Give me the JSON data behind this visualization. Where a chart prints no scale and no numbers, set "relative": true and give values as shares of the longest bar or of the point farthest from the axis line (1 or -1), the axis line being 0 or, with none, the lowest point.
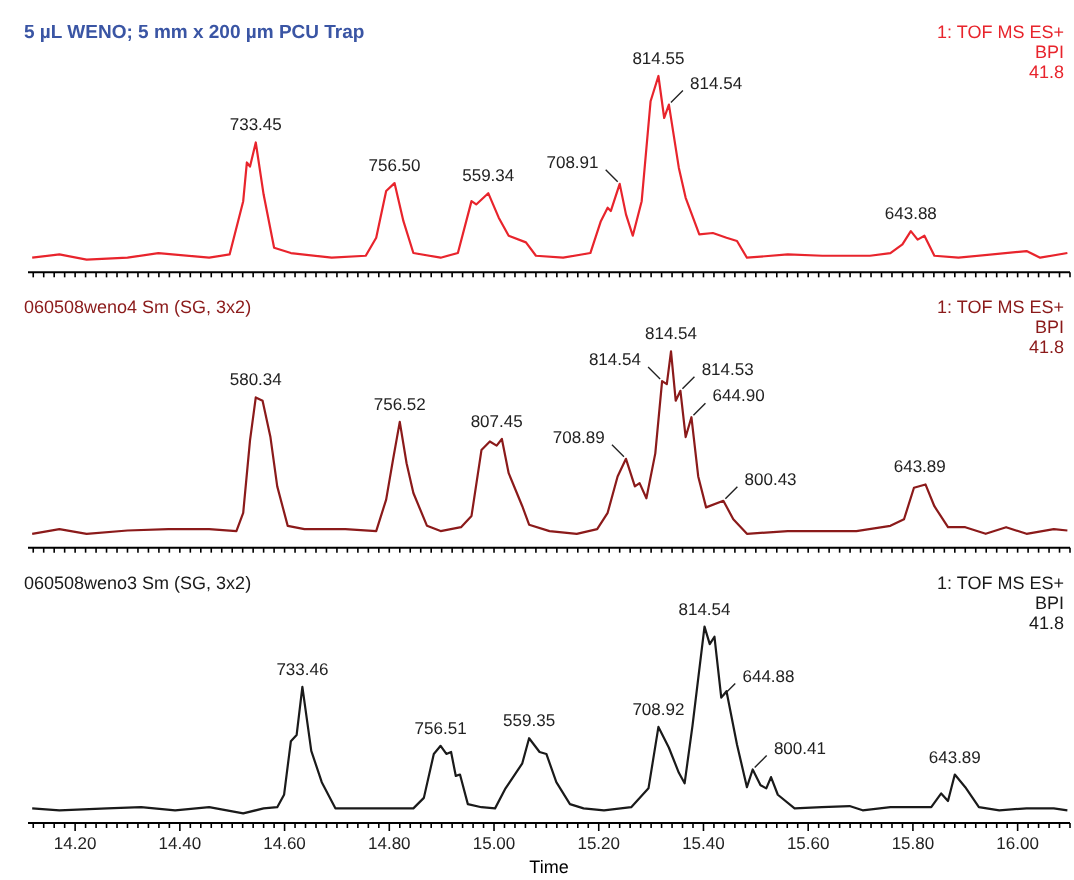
{
  "chart_data": [
    {
      "type": "line",
      "title": "5 µL WENO; 5 mm x 200 µm PCU Trap",
      "relative": true,
      "tick_labels": false,
      "xlim": [
        14.11,
        16.1
      ],
      "xticks": [
        {
          "value": 14.12,
          "label": null
        },
        {
          "value": 14.14,
          "label": null
        },
        {
          "value": 14.16,
          "label": null
        },
        {
          "value": 14.18,
          "label": null
        },
        {
          "value": 14.2,
          "label": null
        },
        {
          "value": 14.22,
          "label": null
        },
        {
          "value": 14.24,
          "label": null
        },
        {
          "value": 14.26,
          "label": null
        },
        {
          "value": 14.28,
          "label": null
        },
        {
          "value": 14.3,
          "label": null
        },
        {
          "value": 14.32,
          "label": null
        },
        {
          "value": 14.34,
          "label": null
        },
        {
          "value": 14.36,
          "label": null
        },
        {
          "value": 14.38,
          "label": null
        },
        {
          "value": 14.4,
          "label": null
        },
        {
          "value": 14.42,
          "label": null
        },
        {
          "value": 14.44,
          "label": null
        },
        {
          "value": 14.46,
          "label": null
        },
        {
          "value": 14.48,
          "label": null
        },
        {
          "value": 14.5,
          "label": null
        },
        {
          "value": 14.52,
          "label": null
        },
        {
          "value": 14.54,
          "label": null
        },
        {
          "value": 14.56,
          "label": null
        },
        {
          "value": 14.58,
          "label": null
        },
        {
          "value": 14.6,
          "label": null
        },
        {
          "value": 14.62,
          "label": null
        },
        {
          "value": 14.64,
          "label": null
        },
        {
          "value": 14.66,
          "label": null
        },
        {
          "value": 14.68,
          "label": null
        },
        {
          "value": 14.7,
          "label": null
        },
        {
          "value": 14.72,
          "label": null
        },
        {
          "value": 14.74,
          "label": null
        },
        {
          "value": 14.76,
          "label": null
        },
        {
          "value": 14.78,
          "label": null
        },
        {
          "value": 14.8,
          "label": null
        },
        {
          "value": 14.82,
          "label": null
        },
        {
          "value": 14.84,
          "label": null
        },
        {
          "value": 14.86,
          "label": null
        },
        {
          "value": 14.88,
          "label": null
        },
        {
          "value": 14.9,
          "label": null
        },
        {
          "value": 14.92,
          "label": null
        },
        {
          "value": 14.94,
          "label": null
        },
        {
          "value": 14.96,
          "label": null
        },
        {
          "value": 14.98,
          "label": null
        },
        {
          "value": 15.0,
          "label": null
        },
        {
          "value": 15.02,
          "label": null
        },
        {
          "value": 15.04,
          "label": null
        },
        {
          "value": 15.06,
          "label": null
        },
        {
          "value": 15.08,
          "label": null
        },
        {
          "value": 15.1,
          "label": null
        },
        {
          "value": 15.12,
          "label": null
        },
        {
          "value": 15.14,
          "label": null
        },
        {
          "value": 15.16,
          "label": null
        },
        {
          "value": 15.18,
          "label": null
        },
        {
          "value": 15.2,
          "label": null
        },
        {
          "value": 15.22,
          "label": null
        },
        {
          "value": 15.24,
          "label": null
        },
        {
          "value": 15.26,
          "label": null
        },
        {
          "value": 15.28,
          "label": null
        },
        {
          "value": 15.3,
          "label": null
        },
        {
          "value": 15.32,
          "label": null
        },
        {
          "value": 15.34,
          "label": null
        },
        {
          "value": 15.36,
          "label": null
        },
        {
          "value": 15.38,
          "label": null
        },
        {
          "value": 15.4,
          "label": null
        },
        {
          "value": 15.42,
          "label": null
        },
        {
          "value": 15.44,
          "label": null
        },
        {
          "value": 15.46,
          "label": null
        },
        {
          "value": 15.48,
          "label": null
        },
        {
          "value": 15.5,
          "label": null
        },
        {
          "value": 15.52,
          "label": null
        },
        {
          "value": 15.54,
          "label": null
        },
        {
          "value": 15.56,
          "label": null
        },
        {
          "value": 15.58,
          "label": null
        },
        {
          "value": 15.6,
          "label": null
        },
        {
          "value": 15.62,
          "label": null
        },
        {
          "value": 15.64,
          "label": null
        },
        {
          "value": 15.66,
          "label": null
        },
        {
          "value": 15.68,
          "label": null
        },
        {
          "value": 15.7,
          "label": null
        },
        {
          "value": 15.72,
          "label": null
        },
        {
          "value": 15.74,
          "label": null
        },
        {
          "value": 15.76,
          "label": null
        },
        {
          "value": 15.78,
          "label": null
        },
        {
          "value": 15.8,
          "label": null
        },
        {
          "value": 15.82,
          "label": null
        },
        {
          "value": 15.84,
          "label": null
        },
        {
          "value": 15.86,
          "label": null
        },
        {
          "value": 15.88,
          "label": null
        },
        {
          "value": 15.9,
          "label": null
        },
        {
          "value": 15.92,
          "label": null
        },
        {
          "value": 15.94,
          "label": null
        },
        {
          "value": 15.96,
          "label": null
        },
        {
          "value": 15.98,
          "label": null
        },
        {
          "value": 16.0,
          "label": null
        },
        {
          "value": 16.02,
          "label": null
        },
        {
          "value": 16.04,
          "label": null
        },
        {
          "value": 16.06,
          "label": null
        },
        {
          "value": 16.08,
          "label": null
        },
        {
          "value": 16.1,
          "label": null
        }
      ],
      "series": [
        {
          "color": "#e8242c",
          "x": [
            14.118,
            14.17,
            14.222,
            14.3,
            14.359,
            14.456,
            14.495,
            14.521,
            14.528,
            14.534,
            14.545,
            14.56,
            14.58,
            14.612,
            14.69,
            14.755,
            14.775,
            14.794,
            14.81,
            14.827,
            14.846,
            14.898,
            14.931,
            14.957,
            14.966,
            14.989,
            15.009,
            15.028,
            15.061,
            15.08,
            15.132,
            15.184,
            15.204,
            15.217,
            15.223,
            15.24,
            15.252,
            15.265,
            15.282,
            15.299,
            15.314,
            15.325,
            15.334,
            15.353,
            15.366,
            15.392,
            15.418,
            15.444,
            15.464,
            15.483,
            15.561,
            15.627,
            15.718,
            15.757,
            15.78,
            15.796,
            15.809,
            15.822,
            15.841,
            15.887,
            16.017,
            16.043,
            16.095
          ],
          "values": [
            0.065,
            0.082,
            0.055,
            0.065,
            0.089,
            0.065,
            0.082,
            0.356,
            0.555,
            0.534,
            0.658,
            0.39,
            0.116,
            0.089,
            0.065,
            0.075,
            0.168,
            0.408,
            0.449,
            0.253,
            0.089,
            0.065,
            0.089,
            0.356,
            0.339,
            0.397,
            0.271,
            0.178,
            0.144,
            0.075,
            0.065,
            0.089,
            0.253,
            0.322,
            0.305,
            0.445,
            0.288,
            0.178,
            0.356,
            0.87,
            1,
            0.784,
            0.853,
            0.527,
            0.373,
            0.185,
            0.192,
            0.168,
            0.151,
            0.065,
            0.082,
            0.075,
            0.075,
            0.089,
            0.134,
            0.202,
            0.158,
            0.178,
            0.075,
            0.065,
            0.099,
            0.065,
            0.089
          ]
        }
      ],
      "annotations": [
        "1: TOF MS ES+",
        "BPI",
        "41.8",
        {
          "text": "733.45",
          "x": 14.545,
          "y": 0.658
        },
        {
          "text": "756.50",
          "x": 14.81,
          "y": 0.449
        },
        {
          "text": "559.34",
          "x": 14.989,
          "y": 0.397
        },
        {
          "text": "708.91",
          "x": 15.24,
          "y": 0.445
        },
        {
          "text": "814.55",
          "x": 15.314,
          "y": 1
        },
        {
          "text": "814.54",
          "x": 15.334,
          "y": 0.853
        },
        {
          "text": "643.88",
          "x": 15.796,
          "y": 0.202
        }
      ]
    },
    {
      "type": "line",
      "title": "060508weno4 Sm (SG, 3x2)",
      "relative": true,
      "tick_labels": false,
      "xlim": [
        14.11,
        16.1
      ],
      "xticks": [
        {
          "value": 14.12,
          "label": null
        },
        {
          "value": 14.14,
          "label": null
        },
        {
          "value": 14.16,
          "label": null
        },
        {
          "value": 14.18,
          "label": null
        },
        {
          "value": 14.2,
          "label": null
        },
        {
          "value": 14.22,
          "label": null
        },
        {
          "value": 14.24,
          "label": null
        },
        {
          "value": 14.26,
          "label": null
        },
        {
          "value": 14.28,
          "label": null
        },
        {
          "value": 14.3,
          "label": null
        },
        {
          "value": 14.32,
          "label": null
        },
        {
          "value": 14.34,
          "label": null
        },
        {
          "value": 14.36,
          "label": null
        },
        {
          "value": 14.38,
          "label": null
        },
        {
          "value": 14.4,
          "label": null
        },
        {
          "value": 14.42,
          "label": null
        },
        {
          "value": 14.44,
          "label": null
        },
        {
          "value": 14.46,
          "label": null
        },
        {
          "value": 14.48,
          "label": null
        },
        {
          "value": 14.5,
          "label": null
        },
        {
          "value": 14.52,
          "label": null
        },
        {
          "value": 14.54,
          "label": null
        },
        {
          "value": 14.56,
          "label": null
        },
        {
          "value": 14.58,
          "label": null
        },
        {
          "value": 14.6,
          "label": null
        },
        {
          "value": 14.62,
          "label": null
        },
        {
          "value": 14.64,
          "label": null
        },
        {
          "value": 14.66,
          "label": null
        },
        {
          "value": 14.68,
          "label": null
        },
        {
          "value": 14.7,
          "label": null
        },
        {
          "value": 14.72,
          "label": null
        },
        {
          "value": 14.74,
          "label": null
        },
        {
          "value": 14.76,
          "label": null
        },
        {
          "value": 14.78,
          "label": null
        },
        {
          "value": 14.8,
          "label": null
        },
        {
          "value": 14.82,
          "label": null
        },
        {
          "value": 14.84,
          "label": null
        },
        {
          "value": 14.86,
          "label": null
        },
        {
          "value": 14.88,
          "label": null
        },
        {
          "value": 14.9,
          "label": null
        },
        {
          "value": 14.92,
          "label": null
        },
        {
          "value": 14.94,
          "label": null
        },
        {
          "value": 14.96,
          "label": null
        },
        {
          "value": 14.98,
          "label": null
        },
        {
          "value": 15.0,
          "label": null
        },
        {
          "value": 15.02,
          "label": null
        },
        {
          "value": 15.04,
          "label": null
        },
        {
          "value": 15.06,
          "label": null
        },
        {
          "value": 15.08,
          "label": null
        },
        {
          "value": 15.1,
          "label": null
        },
        {
          "value": 15.12,
          "label": null
        },
        {
          "value": 15.14,
          "label": null
        },
        {
          "value": 15.16,
          "label": null
        },
        {
          "value": 15.18,
          "label": null
        },
        {
          "value": 15.2,
          "label": null
        },
        {
          "value": 15.22,
          "label": null
        },
        {
          "value": 15.24,
          "label": null
        },
        {
          "value": 15.26,
          "label": null
        },
        {
          "value": 15.28,
          "label": null
        },
        {
          "value": 15.3,
          "label": null
        },
        {
          "value": 15.32,
          "label": null
        },
        {
          "value": 15.34,
          "label": null
        },
        {
          "value": 15.36,
          "label": null
        },
        {
          "value": 15.38,
          "label": null
        },
        {
          "value": 15.4,
          "label": null
        },
        {
          "value": 15.42,
          "label": null
        },
        {
          "value": 15.44,
          "label": null
        },
        {
          "value": 15.46,
          "label": null
        },
        {
          "value": 15.48,
          "label": null
        },
        {
          "value": 15.5,
          "label": null
        },
        {
          "value": 15.52,
          "label": null
        },
        {
          "value": 15.54,
          "label": null
        },
        {
          "value": 15.56,
          "label": null
        },
        {
          "value": 15.58,
          "label": null
        },
        {
          "value": 15.6,
          "label": null
        },
        {
          "value": 15.62,
          "label": null
        },
        {
          "value": 15.64,
          "label": null
        },
        {
          "value": 15.66,
          "label": null
        },
        {
          "value": 15.68,
          "label": null
        },
        {
          "value": 15.7,
          "label": null
        },
        {
          "value": 15.72,
          "label": null
        },
        {
          "value": 15.74,
          "label": null
        },
        {
          "value": 15.76,
          "label": null
        },
        {
          "value": 15.78,
          "label": null
        },
        {
          "value": 15.8,
          "label": null
        },
        {
          "value": 15.82,
          "label": null
        },
        {
          "value": 15.84,
          "label": null
        },
        {
          "value": 15.86,
          "label": null
        },
        {
          "value": 15.88,
          "label": null
        },
        {
          "value": 15.9,
          "label": null
        },
        {
          "value": 15.92,
          "label": null
        },
        {
          "value": 15.94,
          "label": null
        },
        {
          "value": 15.96,
          "label": null
        },
        {
          "value": 15.98,
          "label": null
        },
        {
          "value": 16.0,
          "label": null
        },
        {
          "value": 16.02,
          "label": null
        },
        {
          "value": 16.04,
          "label": null
        },
        {
          "value": 16.06,
          "label": null
        },
        {
          "value": 16.08,
          "label": null
        },
        {
          "value": 16.1,
          "label": null
        }
      ],
      "series": [
        {
          "color": "#8b1a1a",
          "x": [
            14.118,
            14.17,
            14.222,
            14.3,
            14.378,
            14.456,
            14.508,
            14.521,
            14.534,
            14.545,
            14.558,
            14.573,
            14.586,
            14.606,
            14.638,
            14.716,
            14.775,
            14.794,
            14.807,
            14.82,
            14.833,
            14.846,
            14.872,
            14.898,
            14.937,
            14.957,
            14.976,
            14.992,
            15.005,
            15.015,
            15.028,
            15.054,
            15.067,
            15.106,
            15.158,
            15.197,
            15.217,
            15.236,
            15.252,
            15.269,
            15.278,
            15.291,
            15.308,
            15.321,
            15.33,
            15.338,
            15.347,
            15.356,
            15.366,
            15.377,
            15.39,
            15.405,
            15.438,
            15.457,
            15.483,
            15.561,
            15.692,
            15.757,
            15.783,
            15.802,
            15.824,
            15.841,
            15.867,
            15.9,
            15.939,
            15.978,
            16.017,
            16.069,
            16.095
          ],
          "values": [
            0.061,
            0.085,
            0.061,
            0.078,
            0.085,
            0.085,
            0.075,
            0.169,
            0.542,
            0.763,
            0.746,
            0.559,
            0.305,
            0.102,
            0.085,
            0.085,
            0.075,
            0.237,
            0.441,
            0.637,
            0.424,
            0.271,
            0.102,
            0.075,
            0.095,
            0.153,
            0.492,
            0.536,
            0.515,
            0.549,
            0.373,
            0.203,
            0.108,
            0.075,
            0.061,
            0.085,
            0.169,
            0.356,
            0.447,
            0.305,
            0.322,
            0.244,
            0.475,
            0.847,
            0.831,
            1,
            0.746,
            0.797,
            0.559,
            0.661,
            0.356,
            0.197,
            0.231,
            0.136,
            0.061,
            0.075,
            0.075,
            0.102,
            0.136,
            0.298,
            0.315,
            0.203,
            0.095,
            0.095,
            0.061,
            0.095,
            0.061,
            0.085,
            0.078
          ]
        }
      ],
      "annotations": [
        "1: TOF MS ES+",
        "BPI",
        "41.8",
        {
          "text": "580.34",
          "x": 14.545,
          "y": 0.763
        },
        {
          "text": "756.52",
          "x": 14.82,
          "y": 0.637
        },
        {
          "text": "807.45",
          "x": 15.005,
          "y": 0.549
        },
        {
          "text": "708.89",
          "x": 15.252,
          "y": 0.447
        },
        {
          "text": "814.54",
          "x": 15.321,
          "y": 0.847
        },
        {
          "text": "814.54",
          "x": 15.338,
          "y": 1
        },
        {
          "text": "814.53",
          "x": 15.356,
          "y": 0.797
        },
        {
          "text": "644.90",
          "x": 15.377,
          "y": 0.661
        },
        {
          "text": "800.43",
          "x": 15.438,
          "y": 0.231
        },
        {
          "text": "643.89",
          "x": 15.813,
          "y": 0.315
        }
      ]
    },
    {
      "type": "line",
      "title": "060508weno3 Sm (SG, 3x2)",
      "xlabel": "Time",
      "relative": true,
      "tick_labels": "x",
      "xlim": [
        14.11,
        16.1
      ],
      "xticks": [
        {
          "value": 14.12,
          "label": null
        },
        {
          "value": 14.14,
          "label": null
        },
        {
          "value": 14.16,
          "label": null
        },
        {
          "value": 14.18,
          "label": null
        },
        {
          "value": 14.2,
          "label": "14.20"
        },
        {
          "value": 14.22,
          "label": null
        },
        {
          "value": 14.24,
          "label": null
        },
        {
          "value": 14.26,
          "label": null
        },
        {
          "value": 14.28,
          "label": null
        },
        {
          "value": 14.3,
          "label": null
        },
        {
          "value": 14.32,
          "label": null
        },
        {
          "value": 14.34,
          "label": null
        },
        {
          "value": 14.36,
          "label": null
        },
        {
          "value": 14.38,
          "label": null
        },
        {
          "value": 14.4,
          "label": "14.40"
        },
        {
          "value": 14.42,
          "label": null
        },
        {
          "value": 14.44,
          "label": null
        },
        {
          "value": 14.46,
          "label": null
        },
        {
          "value": 14.48,
          "label": null
        },
        {
          "value": 14.5,
          "label": null
        },
        {
          "value": 14.52,
          "label": null
        },
        {
          "value": 14.54,
          "label": null
        },
        {
          "value": 14.56,
          "label": null
        },
        {
          "value": 14.58,
          "label": null
        },
        {
          "value": 14.6,
          "label": "14.60"
        },
        {
          "value": 14.62,
          "label": null
        },
        {
          "value": 14.64,
          "label": null
        },
        {
          "value": 14.66,
          "label": null
        },
        {
          "value": 14.68,
          "label": null
        },
        {
          "value": 14.7,
          "label": null
        },
        {
          "value": 14.72,
          "label": null
        },
        {
          "value": 14.74,
          "label": null
        },
        {
          "value": 14.76,
          "label": null
        },
        {
          "value": 14.78,
          "label": null
        },
        {
          "value": 14.8,
          "label": "14.80"
        },
        {
          "value": 14.82,
          "label": null
        },
        {
          "value": 14.84,
          "label": null
        },
        {
          "value": 14.86,
          "label": null
        },
        {
          "value": 14.88,
          "label": null
        },
        {
          "value": 14.9,
          "label": null
        },
        {
          "value": 14.92,
          "label": null
        },
        {
          "value": 14.94,
          "label": null
        },
        {
          "value": 14.96,
          "label": null
        },
        {
          "value": 14.98,
          "label": null
        },
        {
          "value": 15.0,
          "label": "15.00"
        },
        {
          "value": 15.02,
          "label": null
        },
        {
          "value": 15.04,
          "label": null
        },
        {
          "value": 15.06,
          "label": null
        },
        {
          "value": 15.08,
          "label": null
        },
        {
          "value": 15.1,
          "label": null
        },
        {
          "value": 15.12,
          "label": null
        },
        {
          "value": 15.14,
          "label": null
        },
        {
          "value": 15.16,
          "label": null
        },
        {
          "value": 15.18,
          "label": null
        },
        {
          "value": 15.2,
          "label": "15.20"
        },
        {
          "value": 15.22,
          "label": null
        },
        {
          "value": 15.24,
          "label": null
        },
        {
          "value": 15.26,
          "label": null
        },
        {
          "value": 15.28,
          "label": null
        },
        {
          "value": 15.3,
          "label": null
        },
        {
          "value": 15.32,
          "label": null
        },
        {
          "value": 15.34,
          "label": null
        },
        {
          "value": 15.36,
          "label": null
        },
        {
          "value": 15.38,
          "label": null
        },
        {
          "value": 15.4,
          "label": "15.40"
        },
        {
          "value": 15.42,
          "label": null
        },
        {
          "value": 15.44,
          "label": null
        },
        {
          "value": 15.46,
          "label": null
        },
        {
          "value": 15.48,
          "label": null
        },
        {
          "value": 15.5,
          "label": null
        },
        {
          "value": 15.52,
          "label": null
        },
        {
          "value": 15.54,
          "label": null
        },
        {
          "value": 15.56,
          "label": null
        },
        {
          "value": 15.58,
          "label": null
        },
        {
          "value": 15.6,
          "label": "15.60"
        },
        {
          "value": 15.62,
          "label": null
        },
        {
          "value": 15.64,
          "label": null
        },
        {
          "value": 15.66,
          "label": null
        },
        {
          "value": 15.68,
          "label": null
        },
        {
          "value": 15.7,
          "label": null
        },
        {
          "value": 15.72,
          "label": null
        },
        {
          "value": 15.74,
          "label": null
        },
        {
          "value": 15.76,
          "label": null
        },
        {
          "value": 15.78,
          "label": null
        },
        {
          "value": 15.8,
          "label": "15.80"
        },
        {
          "value": 15.82,
          "label": null
        },
        {
          "value": 15.84,
          "label": null
        },
        {
          "value": 15.86,
          "label": null
        },
        {
          "value": 15.88,
          "label": null
        },
        {
          "value": 15.9,
          "label": null
        },
        {
          "value": 15.92,
          "label": null
        },
        {
          "value": 15.94,
          "label": null
        },
        {
          "value": 15.96,
          "label": null
        },
        {
          "value": 15.98,
          "label": null
        },
        {
          "value": 16.0,
          "label": "16.00"
        },
        {
          "value": 16.02,
          "label": null
        },
        {
          "value": 16.04,
          "label": null
        },
        {
          "value": 16.06,
          "label": null
        },
        {
          "value": 16.08,
          "label": null
        },
        {
          "value": 16.1,
          "label": null
        }
      ],
      "series": [
        {
          "color": "#1a1a1a",
          "x": [
            14.118,
            14.17,
            14.261,
            14.326,
            14.391,
            14.456,
            14.521,
            14.56,
            14.586,
            14.599,
            14.612,
            14.623,
            14.634,
            14.651,
            14.671,
            14.697,
            14.768,
            14.846,
            14.866,
            14.885,
            14.898,
            14.909,
            14.918,
            14.927,
            14.935,
            14.95,
            14.976,
            15.002,
            15.022,
            15.054,
            15.067,
            15.087,
            15.1,
            15.119,
            15.145,
            15.171,
            15.21,
            15.262,
            15.295,
            15.314,
            15.334,
            15.353,
            15.364,
            15.379,
            15.402,
            15.412,
            15.421,
            15.434,
            15.444,
            15.464,
            15.483,
            15.494,
            15.509,
            15.52,
            15.529,
            15.542,
            15.574,
            15.626,
            15.679,
            15.704,
            15.757,
            15.835,
            15.854,
            15.867,
            15.88,
            15.9,
            15.926,
            15.965,
            16.017,
            16.069,
            16.095
          ],
          "values": [
            0.065,
            0.055,
            0.065,
            0.071,
            0.055,
            0.071,
            0.039,
            0.065,
            0.071,
            0.135,
            0.41,
            0.442,
            0.69,
            0.361,
            0.2,
            0.065,
            0.065,
            0.065,
            0.119,
            0.345,
            0.387,
            0.345,
            0.355,
            0.232,
            0.239,
            0.087,
            0.071,
            0.065,
            0.168,
            0.297,
            0.426,
            0.355,
            0.345,
            0.2,
            0.087,
            0.065,
            0.055,
            0.071,
            0.168,
            0.484,
            0.377,
            0.248,
            0.194,
            0.49,
            1,
            0.91,
            0.948,
            0.635,
            0.668,
            0.394,
            0.174,
            0.265,
            0.184,
            0.168,
            0.226,
            0.135,
            0.065,
            0.071,
            0.077,
            0.055,
            0.071,
            0.071,
            0.142,
            0.103,
            0.239,
            0.174,
            0.071,
            0.055,
            0.065,
            0.065,
            0.055
          ]
        }
      ],
      "annotations": [
        "1: TOF MS ES+",
        "BPI",
        "41.8",
        {
          "text": "733.46",
          "x": 14.634,
          "y": 0.69
        },
        {
          "text": "756.51",
          "x": 14.898,
          "y": 0.387
        },
        {
          "text": "559.35",
          "x": 15.067,
          "y": 0.426
        },
        {
          "text": "708.92",
          "x": 15.314,
          "y": 0.484
        },
        {
          "text": "814.54",
          "x": 15.402,
          "y": 1
        },
        {
          "text": "644.88",
          "x": 15.434,
          "y": 0.635
        },
        {
          "text": "800.41",
          "x": 15.494,
          "y": 0.265
        },
        {
          "text": "643.89",
          "x": 15.88,
          "y": 0.239
        }
      ]
    }
  ]
}
